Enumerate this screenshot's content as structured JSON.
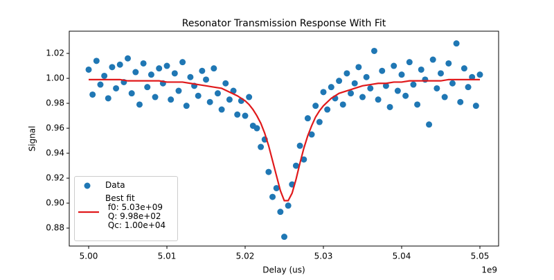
{
  "chart_data": {
    "type": "scatter",
    "title": "Resonator Transmission Response With Fit",
    "xlabel": "Delay (us)",
    "ylabel": "Signal",
    "x_offset": "1e9",
    "xlim": [
      4997520000,
      5052390000
    ],
    "ylim": [
      0.8656,
      1.0378
    ],
    "xticks": [
      {
        "value": 5000000000,
        "label": "5.00"
      },
      {
        "value": 5010000000,
        "label": "5.01"
      },
      {
        "value": 5020000000,
        "label": "5.02"
      },
      {
        "value": 5030000000,
        "label": "5.03"
      },
      {
        "value": 5040000000,
        "label": "5.04"
      },
      {
        "value": 5050000000,
        "label": "5.05"
      }
    ],
    "yticks": [
      0.88,
      {
        "value": 0.9,
        "label": "0.90"
      },
      0.92,
      0.94,
      0.96,
      0.98,
      {
        "value": 1.0,
        "label": "1.00"
      },
      1.02
    ],
    "legend": "lower left",
    "series": [
      {
        "name": "Data",
        "type": "scatter",
        "color": "#1f77b4",
        "x": [
          5000000000,
          5000500000,
          5001000000,
          5001500000,
          5002000000,
          5002500000,
          5003000000,
          5003500000,
          5004000000,
          5004500000,
          5005000000,
          5005500000,
          5006000000,
          5006500000,
          5007000000,
          5007500000,
          5008000000,
          5008500000,
          5009000000,
          5009500000,
          5010000000,
          5010500000,
          5011000000,
          5011500000,
          5012000000,
          5012500000,
          5013000000,
          5013500000,
          5014000000,
          5014500000,
          5015000000,
          5015500000,
          5016000000,
          5016500000,
          5017000000,
          5017500000,
          5018000000,
          5018500000,
          5019000000,
          5019500000,
          5020000000,
          5020500000,
          5021000000,
          5021500000,
          5022000000,
          5022500000,
          5023000000,
          5023500000,
          5024000000,
          5024500000,
          5025000000,
          5025500000,
          5026000000,
          5026500000,
          5027000000,
          5027500000,
          5028000000,
          5028500000,
          5029000000,
          5029500000,
          5030000000,
          5030500000,
          5031000000,
          5031500000,
          5032000000,
          5032500000,
          5033000000,
          5033500000,
          5034000000,
          5034500000,
          5035000000,
          5035500000,
          5036000000,
          5036500000,
          5037000000,
          5037500000,
          5038000000,
          5038500000,
          5039000000,
          5039500000,
          5040000000,
          5040500000,
          5041000000,
          5041500000,
          5042000000,
          5042500000,
          5043000000,
          5043500000,
          5044000000,
          5044500000,
          5045000000,
          5045500000,
          5046000000,
          5046500000,
          5047000000,
          5047500000,
          5048000000,
          5048500000,
          5049000000,
          5049500000,
          5050000000
        ],
        "values": [
          1.007,
          0.987,
          1.014,
          0.995,
          1.002,
          0.984,
          1.009,
          0.992,
          1.011,
          0.997,
          1.016,
          0.988,
          1.005,
          0.979,
          1.012,
          0.993,
          1.003,
          0.985,
          1.008,
          0.996,
          1.01,
          0.983,
          1.004,
          0.99,
          1.013,
          0.978,
          1.001,
          0.994,
          0.986,
          1.006,
          0.999,
          0.981,
          1.008,
          0.988,
          0.975,
          0.996,
          0.983,
          0.99,
          0.971,
          0.982,
          0.97,
          0.985,
          0.962,
          0.96,
          0.945,
          0.951,
          0.925,
          0.905,
          0.912,
          0.893,
          0.873,
          0.898,
          0.915,
          0.93,
          0.946,
          0.935,
          0.968,
          0.955,
          0.978,
          0.965,
          0.989,
          0.975,
          0.993,
          0.984,
          0.998,
          0.979,
          1.004,
          0.988,
          0.996,
          1.009,
          0.985,
          1.001,
          0.992,
          1.022,
          0.983,
          1.006,
          0.994,
          0.977,
          1.01,
          0.99,
          1.003,
          0.986,
          1.013,
          0.995,
          0.979,
          1.007,
          0.999,
          0.963,
          1.015,
          0.992,
          1.004,
          0.985,
          1.012,
          0.996,
          1.028,
          0.981,
          1.008,
          0.993,
          1.001,
          0.978,
          1.003
        ]
      },
      {
        "name": "Best fit\n f0: 5.03e+09\n Q: 9.98e+02\n Qc: 1.00e+04",
        "type": "line",
        "color": "#e0191b",
        "x": [
          5000000000,
          5001000000,
          5002000000,
          5003000000,
          5004000000,
          5005000000,
          5006000000,
          5007000000,
          5008000000,
          5009000000,
          5010000000,
          5011000000,
          5012000000,
          5013000000,
          5014000000,
          5015000000,
          5016000000,
          5017000000,
          5018000000,
          5019000000,
          5020000000,
          5020500000,
          5021000000,
          5021500000,
          5022000000,
          5022500000,
          5023000000,
          5023500000,
          5024000000,
          5024500000,
          5025000000,
          5025500000,
          5026000000,
          5026500000,
          5027000000,
          5027500000,
          5028000000,
          5028500000,
          5029000000,
          5029500000,
          5030000000,
          5031000000,
          5032000000,
          5033000000,
          5034000000,
          5035000000,
          5036000000,
          5037000000,
          5038000000,
          5039000000,
          5040000000,
          5041000000,
          5042000000,
          5043000000,
          5044000000,
          5045000000,
          5046000000,
          5047000000,
          5048000000,
          5049000000,
          5050000000
        ],
        "values": [
          0.999,
          0.999,
          0.999,
          0.999,
          0.999,
          0.998,
          0.998,
          0.998,
          0.998,
          0.998,
          0.997,
          0.997,
          0.997,
          0.996,
          0.995,
          0.994,
          0.993,
          0.992,
          0.989,
          0.986,
          0.982,
          0.979,
          0.975,
          0.97,
          0.964,
          0.956,
          0.946,
          0.934,
          0.922,
          0.91,
          0.902,
          0.902,
          0.908,
          0.919,
          0.932,
          0.944,
          0.954,
          0.962,
          0.969,
          0.974,
          0.978,
          0.984,
          0.988,
          0.99,
          0.992,
          0.994,
          0.995,
          0.996,
          0.996,
          0.997,
          0.997,
          0.998,
          0.998,
          0.998,
          0.998,
          0.998,
          0.999,
          0.999,
          0.999,
          0.999,
          0.999
        ]
      }
    ]
  }
}
